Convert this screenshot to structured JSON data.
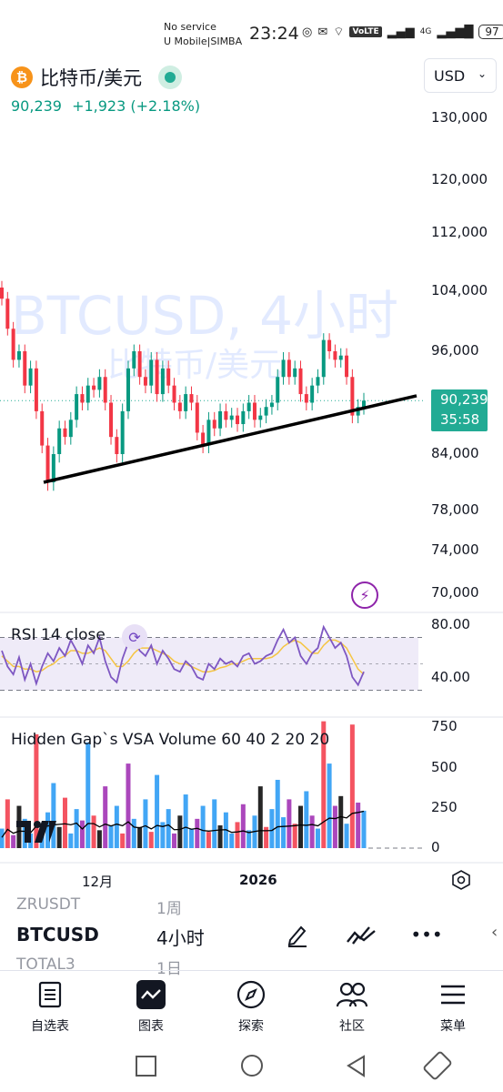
{
  "status_bar": {
    "carrier_line1": "No service",
    "carrier_line2": "U Mobile|SIMBA",
    "time": "23:24",
    "volte": "VoLTE",
    "network": "4G",
    "battery": "97"
  },
  "header": {
    "symbol_name": "比特币/美元",
    "coin_glyph": "₿",
    "price": "90,239",
    "change": "+1,923 (+2.18%)",
    "currency": "USD"
  },
  "watermark": {
    "ticker": "BTCUSD, 4小时",
    "name": "比特币/美元"
  },
  "chart_data": {
    "type": "line",
    "symbol": "BTCUSD",
    "interval": "4小时",
    "price_axis_ticks": [
      130000,
      120000,
      112000,
      104000,
      96000,
      84000,
      78000,
      74000,
      70000
    ],
    "price_axis_labels": [
      "130,000",
      "120,000",
      "112,000",
      "104,000",
      "96,000",
      "84,000",
      "78,000",
      "74,000",
      "70,000"
    ],
    "x_labels": [
      "12月",
      "2026"
    ],
    "last_price": "90,239",
    "countdown": "35:58",
    "series": [
      {
        "values": [
          103000,
          99000,
          95000,
          96000,
          92000,
          94000,
          89000,
          85000,
          81000,
          84000,
          87000,
          86000,
          88000,
          91000,
          90000,
          92000,
          91500,
          93000,
          90000,
          86000,
          84000,
          89000,
          94000,
          96000,
          93000,
          92000,
          95000,
          91000,
          94000,
          92000,
          90000,
          89000,
          91000,
          90000,
          86500,
          85000,
          88000,
          87000,
          89000,
          88000,
          88500,
          87500,
          89000,
          90000,
          88000,
          88500,
          89500,
          90000,
          93000,
          95000,
          93000,
          94000,
          91000,
          90000,
          92000,
          93000,
          97500,
          96000,
          95000,
          95500,
          93000,
          88500,
          89500,
          90239
        ]
      }
    ],
    "trendline": {
      "from": 81000,
      "to": 90800
    },
    "rsi": {
      "title": "RSI 14 close",
      "levels": [
        "80.00",
        "40.00"
      ],
      "upper_band": 70,
      "lower_band": 30,
      "values": [
        60,
        48,
        42,
        55,
        38,
        50,
        35,
        48,
        58,
        52,
        62,
        56,
        68,
        60,
        50,
        64,
        58,
        70,
        52,
        40,
        36,
        54,
        66,
        70,
        60,
        56,
        64,
        50,
        60,
        54,
        46,
        44,
        52,
        48,
        40,
        38,
        50,
        46,
        54,
        50,
        52,
        48,
        56,
        58,
        50,
        52,
        56,
        58,
        68,
        76,
        66,
        70,
        56,
        50,
        58,
        62,
        78,
        70,
        62,
        66,
        56,
        40,
        34,
        44
      ],
      "ma": [
        56,
        52,
        48,
        48,
        46,
        46,
        44,
        45,
        48,
        50,
        54,
        56,
        60,
        60,
        58,
        58,
        60,
        62,
        60,
        54,
        48,
        48,
        52,
        58,
        62,
        62,
        62,
        60,
        58,
        56,
        52,
        50,
        50,
        48,
        46,
        44,
        44,
        45,
        47,
        48,
        50,
        50,
        52,
        54,
        54,
        54,
        54,
        55,
        58,
        63,
        66,
        68,
        66,
        62,
        58,
        58,
        64,
        68,
        68,
        66,
        62,
        54,
        46,
        42
      ]
    },
    "volume": {
      "title": "Hidden Gap`s VSA Volume 60 40 2 20 20",
      "axis_labels": [
        "750",
        "500",
        "250",
        "0"
      ],
      "values": [
        120,
        300,
        80,
        260,
        180,
        90,
        700,
        150,
        220,
        400,
        130,
        310,
        90,
        240,
        170,
        650,
        200,
        110,
        380,
        140,
        260,
        90,
        520,
        180,
        130,
        300,
        100,
        450,
        160,
        240,
        90,
        200,
        330,
        120,
        180,
        260,
        100,
        300,
        140,
        220,
        90,
        160,
        270,
        110,
        200,
        380,
        130,
        240,
        420,
        190,
        300,
        150,
        260,
        350,
        200,
        120,
        780,
        520,
        260,
        320,
        150,
        760,
        280,
        230
      ],
      "colors": [
        "#2196f3",
        "#f23645",
        "#000000",
        "#9c27b0"
      ]
    }
  },
  "watchlist": {
    "prev_symbol": "ZRUSDT",
    "prev_interval": "1周",
    "symbol": "BTCUSD",
    "interval": "4小时",
    "next_symbol": "TOTAL3",
    "next_interval": "1日",
    "arrow": "‹"
  },
  "bottom_nav": {
    "items": [
      {
        "label": "自选表"
      },
      {
        "label": "图表"
      },
      {
        "label": "探索"
      },
      {
        "label": "社区"
      },
      {
        "label": "菜单"
      }
    ]
  }
}
